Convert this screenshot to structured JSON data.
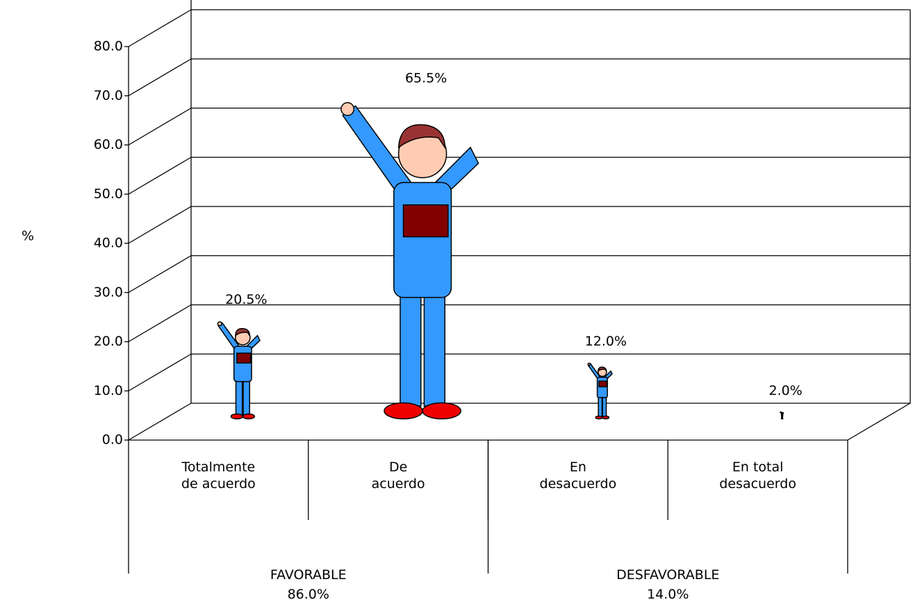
{
  "chart_data": {
    "type": "pictograph",
    "ylabel": "%",
    "categories": [
      "Totalmente\nde acuerdo",
      "De\nacuerdo",
      "En\ndesacuerdo",
      "En total\ndesacuerdo"
    ],
    "values": [
      20.5,
      65.5,
      12.0,
      2.0
    ],
    "value_labels": [
      "20.5%",
      "65.5%",
      "12.0%",
      "2.0%"
    ],
    "groups": [
      {
        "label": "FAVORABLE",
        "value": 86.0,
        "value_label": "86.0%"
      },
      {
        "label": "DESFAVORABLE",
        "value": 14.0,
        "value_label": "14.0%"
      }
    ],
    "color": "#3399ff",
    "ylim": [
      0,
      80
    ],
    "yticks": [
      {
        "value": 0,
        "label": "0.0"
      },
      {
        "value": 10,
        "label": "10.0"
      },
      {
        "value": 20,
        "label": "20.0"
      },
      {
        "value": 30,
        "label": "30.0"
      },
      {
        "value": 40,
        "label": "40.0"
      },
      {
        "value": 50,
        "label": "50.0"
      },
      {
        "value": 60,
        "label": "60.0"
      },
      {
        "value": 70,
        "label": "70.0"
      },
      {
        "value": 80,
        "label": "80.0"
      }
    ],
    "grid": true
  }
}
